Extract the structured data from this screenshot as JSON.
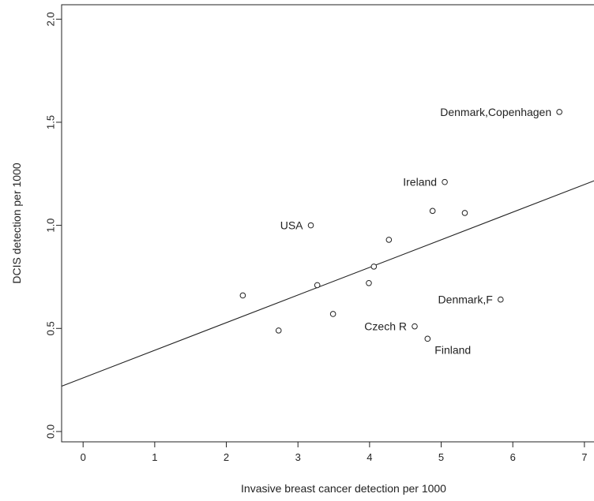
{
  "chart_data": {
    "type": "scatter",
    "title": "",
    "xlabel": "Invasive breast cancer detection per 1000",
    "ylabel": "DCIS detection per 1000",
    "xlim": [
      -0.3,
      7.2
    ],
    "ylim": [
      -0.05,
      2.07
    ],
    "xticks": [
      0,
      1,
      2,
      3,
      4,
      5,
      6,
      7
    ],
    "yticks": [
      0.0,
      0.5,
      1.0,
      1.5,
      2.0
    ],
    "ytick_labels": [
      "0.0",
      "0.5",
      "1.0",
      "1.5",
      "2.0"
    ],
    "grid": false,
    "points": [
      {
        "x": 6.65,
        "y": 1.55,
        "label": "Denmark,Copenhagen",
        "label_side": "left"
      },
      {
        "x": 5.05,
        "y": 1.21,
        "label": "Ireland",
        "label_side": "left"
      },
      {
        "x": 3.18,
        "y": 1.0,
        "label": "USA",
        "label_side": "left"
      },
      {
        "x": 5.83,
        "y": 0.64,
        "label": "Denmark,F",
        "label_side": "left"
      },
      {
        "x": 4.63,
        "y": 0.51,
        "label": "Czech R",
        "label_side": "left"
      },
      {
        "x": 4.81,
        "y": 0.45,
        "label": "Finland",
        "label_side": "below-right"
      },
      {
        "x": 4.88,
        "y": 1.07,
        "label": ""
      },
      {
        "x": 5.33,
        "y": 1.06,
        "label": ""
      },
      {
        "x": 4.27,
        "y": 0.93,
        "label": ""
      },
      {
        "x": 4.06,
        "y": 0.8,
        "label": ""
      },
      {
        "x": 3.99,
        "y": 0.72,
        "label": ""
      },
      {
        "x": 3.27,
        "y": 0.71,
        "label": ""
      },
      {
        "x": 2.23,
        "y": 0.66,
        "label": ""
      },
      {
        "x": 3.49,
        "y": 0.57,
        "label": ""
      },
      {
        "x": 2.73,
        "y": 0.49,
        "label": ""
      }
    ],
    "regression_line": {
      "intercept": 0.26,
      "slope": 0.134
    }
  }
}
